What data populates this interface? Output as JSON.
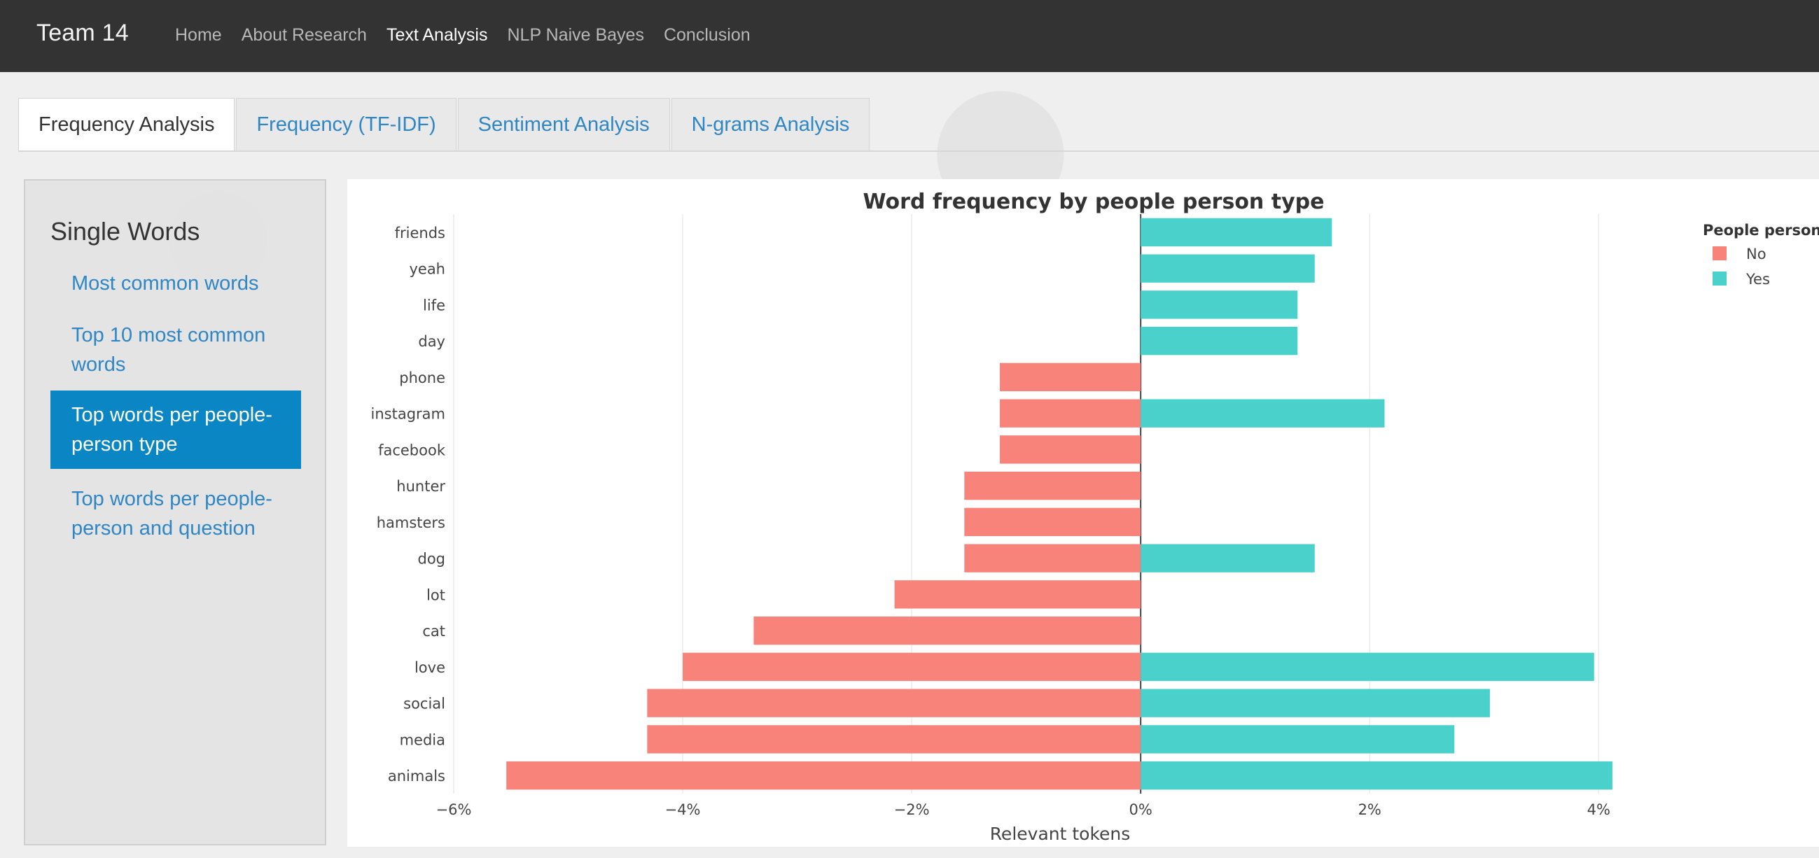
{
  "navbar": {
    "brand": "Team 14",
    "links": [
      {
        "label": "Home",
        "active": false
      },
      {
        "label": "About Research",
        "active": false
      },
      {
        "label": "Text Analysis",
        "active": true
      },
      {
        "label": "NLP Naive Bayes",
        "active": false
      },
      {
        "label": "Conclusion",
        "active": false
      }
    ]
  },
  "tabs": [
    {
      "label": "Frequency Analysis",
      "active": true
    },
    {
      "label": "Frequency (TF-IDF)",
      "active": false
    },
    {
      "label": "Sentiment Analysis",
      "active": false
    },
    {
      "label": "N-grams Analysis",
      "active": false
    }
  ],
  "sidebar": {
    "heading": "Single Words",
    "items": [
      {
        "label": "Most common words",
        "active": false
      },
      {
        "label": "Top 10 most common words",
        "active": false
      },
      {
        "label": "Top words per people-person type",
        "active": true
      },
      {
        "label": "Top words per people-person and question",
        "active": false
      }
    ]
  },
  "colors": {
    "no": "#f8837a",
    "yes": "#4ad1cc",
    "link": "#2f86c4",
    "active_bg": "#0b86c4"
  },
  "chart_data": {
    "type": "bar",
    "orientation": "horizontal",
    "title": "Word frequency by people person type",
    "xlabel": "Relevant tokens",
    "ylabel": "",
    "xlim": [
      -6,
      4.2
    ],
    "x_ticks": [
      -6,
      -4,
      -2,
      0,
      2,
      4
    ],
    "x_tick_labels": [
      "−6%",
      "−4%",
      "−2%",
      "0%",
      "2%",
      "4%"
    ],
    "categories": [
      "friends",
      "yeah",
      "life",
      "day",
      "phone",
      "instagram",
      "facebook",
      "hunter",
      "hamsters",
      "dog",
      "lot",
      "cat",
      "love",
      "social",
      "media",
      "animals"
    ],
    "legend": {
      "title": "People person?",
      "position": "top-right"
    },
    "series": [
      {
        "name": "No",
        "values": [
          0,
          0,
          0,
          0,
          -1.23,
          -1.23,
          -1.23,
          -1.54,
          -1.54,
          -1.54,
          -2.15,
          -3.38,
          -4.0,
          -4.31,
          -4.31,
          -5.54
        ]
      },
      {
        "name": "Yes",
        "values": [
          1.67,
          1.52,
          1.37,
          1.37,
          0,
          2.13,
          0,
          0,
          0,
          1.52,
          0,
          0,
          3.96,
          3.05,
          2.74,
          4.12
        ]
      }
    ],
    "grid": true
  }
}
